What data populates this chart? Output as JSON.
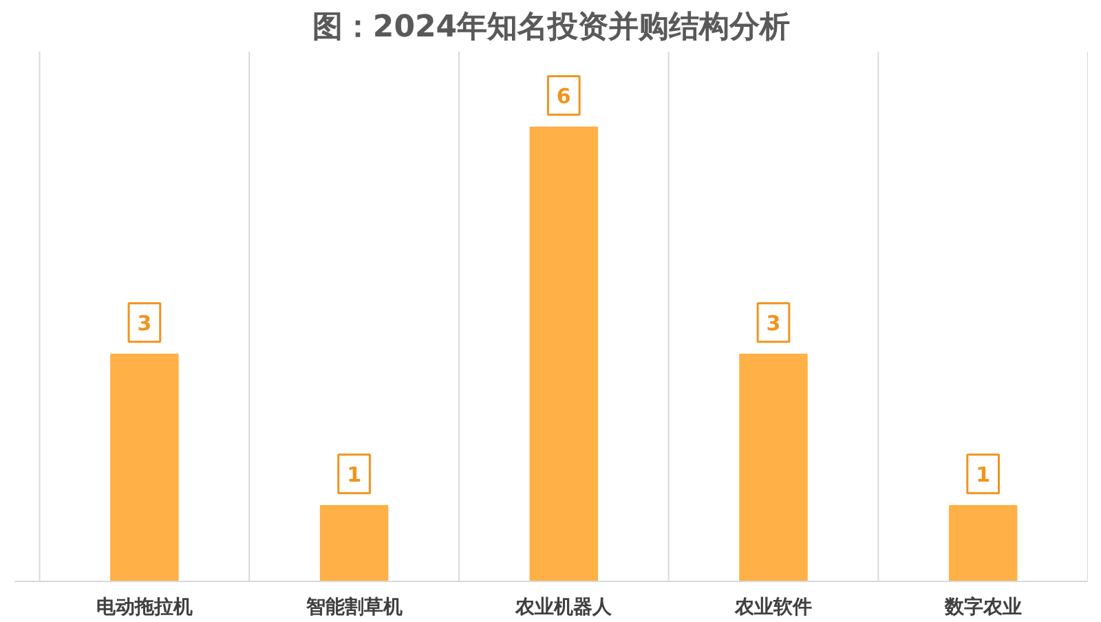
{
  "chart_data": {
    "type": "bar",
    "title": "图：2024年知名投资并购结构分析",
    "categories": [
      "电动拖拉机",
      "智能割草机",
      "农业机器人",
      "农业软件",
      "数字农业"
    ],
    "values": [
      3,
      1,
      6,
      3,
      1
    ],
    "color": "#ffb047",
    "data_labels": true,
    "grid": "x"
  }
}
